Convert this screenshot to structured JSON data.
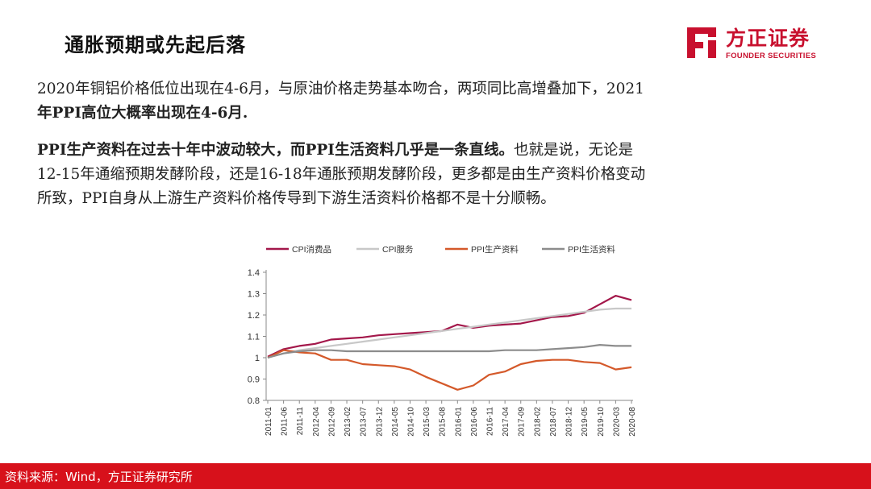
{
  "header": {
    "title": "通胀预期或先起后落",
    "logo_cn": "方正证券",
    "logo_en": "FOUNDER SECURITIES"
  },
  "body": {
    "p1_line1": "2020年铜铝价格低位出现在4-6月，与原油价格走势基本吻合，两项同比高增叠加下，2021",
    "p1_line2": "年PPI高位大概率出现在4-6月.",
    "p2_bold": "PPI生产资料在过去十年中波动较大，而PPI生活资料几乎是一条直线。",
    "p2_rest1": "也就是说，无论是",
    "p2_line2": "12-15年通缩预期发酵阶段，还是16-18年通胀预期发酵阶段，更多都是由生产资料价格变动",
    "p2_line3": "所致，PPI自身从上游生产资料价格传导到下游生活资料价格都不是十分顺畅。"
  },
  "footer": {
    "source": "资料来源：Wind，方正证券研究所"
  },
  "colors": {
    "brand_red": "#c8102e",
    "footer_red": "#d7111b"
  },
  "chart_data": {
    "type": "line",
    "title": "",
    "xlabel": "",
    "ylabel": "",
    "ylim": [
      0.8,
      1.4
    ],
    "yticks": [
      "0.8",
      "0.9",
      "1",
      "1.1",
      "1.2",
      "1.3",
      "1.4"
    ],
    "grid": false,
    "legend_position": "top",
    "x_tick_labels": [
      "2011-01",
      "2011-06",
      "2011-11",
      "2012-04",
      "2012-09",
      "2013-02",
      "2013-07",
      "2013-12",
      "2014-05",
      "2014-10",
      "2015-03",
      "2015-08",
      "2016-01",
      "2016-06",
      "2016-11",
      "2017-04",
      "2017-09",
      "2018-02",
      "2018-07",
      "2018-12",
      "2019-05",
      "2019-10",
      "2020-03",
      "2020-08"
    ],
    "series": [
      {
        "name": "CPI消费品",
        "color": "#a3174a",
        "values": [
          1.005,
          1.04,
          1.055,
          1.065,
          1.085,
          1.09,
          1.095,
          1.105,
          1.11,
          1.115,
          1.12,
          1.125,
          1.155,
          1.14,
          1.15,
          1.155,
          1.16,
          1.175,
          1.19,
          1.195,
          1.21,
          1.25,
          1.29,
          1.27
        ]
      },
      {
        "name": "CPI服务",
        "color": "#c8c8c8",
        "values": [
          1.0,
          1.02,
          1.035,
          1.045,
          1.055,
          1.065,
          1.075,
          1.085,
          1.095,
          1.105,
          1.115,
          1.125,
          1.135,
          1.145,
          1.155,
          1.165,
          1.175,
          1.185,
          1.195,
          1.205,
          1.215,
          1.225,
          1.23,
          1.23
        ]
      },
      {
        "name": "PPI生产资料",
        "color": "#d4592a",
        "values": [
          1.0,
          1.035,
          1.025,
          1.02,
          0.99,
          0.99,
          0.97,
          0.965,
          0.96,
          0.945,
          0.91,
          0.88,
          0.85,
          0.87,
          0.92,
          0.935,
          0.97,
          0.985,
          0.99,
          0.99,
          0.98,
          0.975,
          0.945,
          0.955
        ]
      },
      {
        "name": "PPI生活资料",
        "color": "#8c8c8c",
        "values": [
          1.0,
          1.02,
          1.03,
          1.035,
          1.035,
          1.03,
          1.03,
          1.03,
          1.03,
          1.03,
          1.03,
          1.03,
          1.03,
          1.03,
          1.03,
          1.035,
          1.035,
          1.035,
          1.04,
          1.045,
          1.05,
          1.06,
          1.055,
          1.055
        ]
      }
    ]
  }
}
